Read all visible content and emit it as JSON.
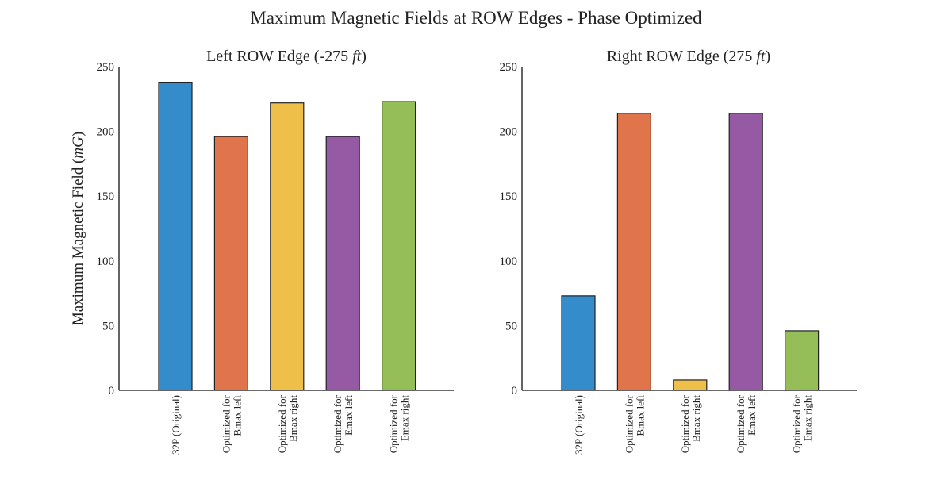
{
  "figure_title": "Maximum Magnetic Fields at ROW Edges - Phase Optimized",
  "chart_data": [
    {
      "type": "bar",
      "title": "Left ROW Edge (-275 ",
      "title_unit": "ft",
      "title_close": ")",
      "xlabel": "",
      "ylabel": "Maximum Magnetic Field (",
      "ylabel_unit": "mG",
      "ylabel_close": ")",
      "ylim": [
        0,
        250
      ],
      "yticks": [
        "0",
        "50",
        "100",
        "150",
        "200",
        "250"
      ],
      "categories": [
        [
          "32P (Original)"
        ],
        [
          "Optimized for",
          "Bmax left"
        ],
        [
          "Optimized for",
          "Bmax right"
        ],
        [
          "Optimized for",
          "Emax left"
        ],
        [
          "Optimized for",
          "Emax right"
        ]
      ],
      "values": [
        238,
        196,
        222,
        196,
        223
      ],
      "colors": [
        "#348ccb",
        "#e0744a",
        "#eec04a",
        "#9659a3",
        "#95bd58"
      ],
      "grid": false,
      "legend": "none"
    },
    {
      "type": "bar",
      "title": "Right ROW Edge (275 ",
      "title_unit": "ft",
      "title_close": ")",
      "xlabel": "",
      "ylabel": "",
      "ylim": [
        0,
        250
      ],
      "yticks": [
        "0",
        "50",
        "100",
        "150",
        "200",
        "250"
      ],
      "categories": [
        [
          "32P (Original)"
        ],
        [
          "Optimized for",
          "Bmax left"
        ],
        [
          "Optimized for",
          "Bmax right"
        ],
        [
          "Optimized for",
          "Emax left"
        ],
        [
          "Optimized for",
          "Emax right"
        ]
      ],
      "values": [
        73,
        214,
        8,
        214,
        46
      ],
      "colors": [
        "#348ccb",
        "#e0744a",
        "#eec04a",
        "#9659a3",
        "#95bd58"
      ],
      "grid": false,
      "legend": "none"
    }
  ]
}
